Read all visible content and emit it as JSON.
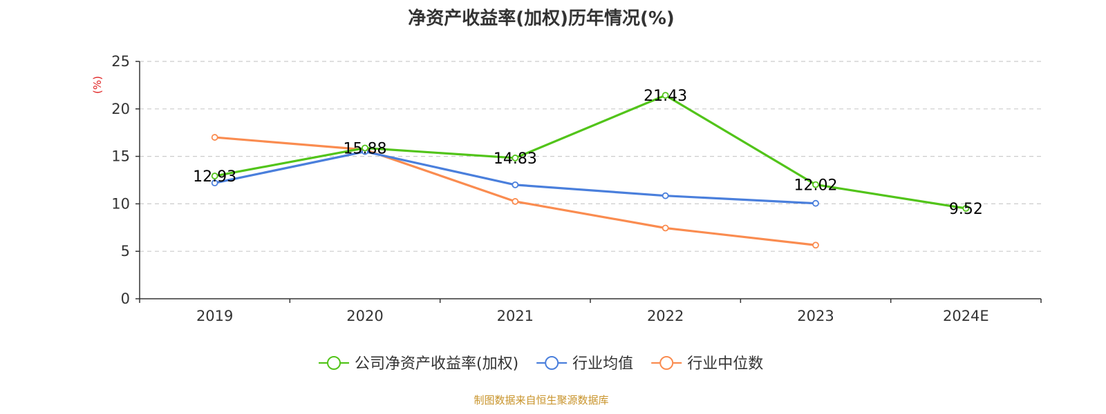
{
  "chart_data": {
    "type": "line",
    "title": "净资产收益率(加权)历年情况(%)",
    "ylabel": "(%)",
    "xlabel": "",
    "ylim": [
      0,
      25
    ],
    "yticks": [
      0,
      5,
      10,
      15,
      20,
      25
    ],
    "categories": [
      "2019",
      "2020",
      "2021",
      "2022",
      "2023",
      "2024E"
    ],
    "grid": true,
    "legend_position": "bottom-center",
    "series": [
      {
        "name": "公司净资产收益率(加权)",
        "color": "#52c41a",
        "values": [
          12.93,
          15.88,
          14.83,
          21.43,
          12.02,
          9.52
        ],
        "labels": [
          "12.93",
          "15.88",
          "14.83",
          "21.43",
          "12.02",
          "9.52"
        ]
      },
      {
        "name": "行业均值",
        "color": "#4a7fdc",
        "values": [
          12.2,
          15.5,
          12.0,
          10.85,
          10.05,
          null
        ],
        "labels": null
      },
      {
        "name": "行业中位数",
        "color": "#fa8c50",
        "values": [
          17.0,
          15.7,
          10.25,
          7.45,
          5.65,
          null
        ],
        "labels": null
      }
    ]
  },
  "footer": {
    "source": "制图数据来自恒生聚源数据库"
  },
  "colors": {
    "axis": "#333333",
    "grid": "#cccccc",
    "unit_label": "#e02020",
    "footer": "#c8932a"
  }
}
